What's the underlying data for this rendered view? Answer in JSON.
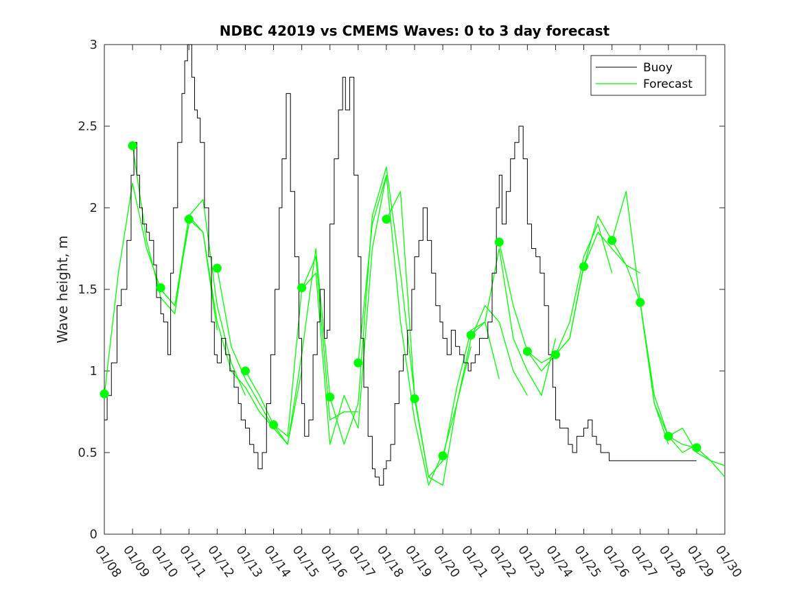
{
  "chart_data": {
    "type": "line",
    "title": "NDBC 42019 vs CMEMS Waves: 0 to 3 day forecast",
    "ylabel": "Wave height, m",
    "xlabel": "",
    "xlim": [
      0,
      22
    ],
    "ylim": [
      0,
      3
    ],
    "yticks": [
      0,
      0.5,
      1,
      1.5,
      2,
      2.5,
      3
    ],
    "ytick_labels": [
      "0",
      "0.5",
      "1",
      "1.5",
      "2",
      "2.5",
      "3"
    ],
    "xtick_labels": [
      "01/08",
      "01/09",
      "01/10",
      "01/11",
      "01/12",
      "01/13",
      "01/14",
      "01/15",
      "01/16",
      "01/17",
      "01/18",
      "01/19",
      "01/20",
      "01/21",
      "01/22",
      "01/23",
      "01/24",
      "01/25",
      "01/26",
      "01/27",
      "01/28",
      "01/29",
      "01/30"
    ],
    "legend": {
      "position": "top-right",
      "entries": [
        {
          "name": "Buoy",
          "color": "#000000"
        },
        {
          "name": "Forecast",
          "color": "#00ff00"
        }
      ]
    },
    "buoy": {
      "name": "Buoy",
      "color": "#000000",
      "x": [
        0,
        0.1,
        0.25,
        0.45,
        0.6,
        0.8,
        0.95,
        1.05,
        1.15,
        1.25,
        1.35,
        1.5,
        1.6,
        1.75,
        1.85,
        2.0,
        2.1,
        2.25,
        2.35,
        2.45,
        2.6,
        2.75,
        2.85,
        2.95,
        3.1,
        3.2,
        3.3,
        3.4,
        3.55,
        3.7,
        3.8,
        3.9,
        4.0,
        4.15,
        4.3,
        4.45,
        4.6,
        4.75,
        4.85,
        5.0,
        5.15,
        5.3,
        5.45,
        5.6,
        5.75,
        5.9,
        6.05,
        6.2,
        6.3,
        6.45,
        6.6,
        6.75,
        6.9,
        7.0,
        7.1,
        7.25,
        7.4,
        7.55,
        7.65,
        7.8,
        7.9,
        8.0,
        8.15,
        8.3,
        8.45,
        8.55,
        8.7,
        8.85,
        9.0,
        9.1,
        9.2,
        9.35,
        9.5,
        9.6,
        9.75,
        9.9,
        10.0,
        10.15,
        10.3,
        10.45,
        10.6,
        10.75,
        10.9,
        11.0,
        11.15,
        11.3,
        11.45,
        11.6,
        11.75,
        11.9,
        12.0,
        12.15,
        12.3,
        12.45,
        12.6,
        12.75,
        12.9,
        13.0,
        13.15,
        13.3,
        13.45,
        13.6,
        13.75,
        13.9,
        14.0,
        14.1,
        14.25,
        14.4,
        14.55,
        14.7,
        14.85,
        15.0,
        15.15,
        15.3,
        15.45,
        15.6,
        15.75,
        15.9,
        16.0,
        16.15,
        16.3,
        16.45,
        16.6,
        16.75,
        16.9,
        17.0,
        17.15,
        17.3,
        17.45,
        17.6,
        17.75,
        17.9,
        18.0,
        18.1,
        18.25,
        18.4,
        18.55,
        18.7,
        18.85,
        19.0,
        19.1,
        19.25,
        19.4,
        19.55,
        19.7,
        19.85,
        20.0,
        20.15,
        20.3,
        20.45,
        20.6,
        20.75,
        20.9,
        21.0
      ],
      "values": [
        0.7,
        0.85,
        1.05,
        1.4,
        1.5,
        1.8,
        2.2,
        2.4,
        2.2,
        2.0,
        1.9,
        1.85,
        1.8,
        1.65,
        1.45,
        1.35,
        1.3,
        1.1,
        1.6,
        2.0,
        2.4,
        2.7,
        2.9,
        3.0,
        2.8,
        2.6,
        2.55,
        2.4,
        2.0,
        1.7,
        1.3,
        1.1,
        1.05,
        1.2,
        1.1,
        1.0,
        0.9,
        0.8,
        0.7,
        0.65,
        0.55,
        0.5,
        0.4,
        0.5,
        0.8,
        1.1,
        1.5,
        2.0,
        2.3,
        2.7,
        2.1,
        1.7,
        1.2,
        0.8,
        0.6,
        0.7,
        1.1,
        1.3,
        1.5,
        1.2,
        1.25,
        1.9,
        2.3,
        2.6,
        2.8,
        2.6,
        2.8,
        2.2,
        1.7,
        1.2,
        0.9,
        0.6,
        0.4,
        0.35,
        0.3,
        0.4,
        0.45,
        0.55,
        0.8,
        1.0,
        1.1,
        1.25,
        1.5,
        1.7,
        1.8,
        2.0,
        1.8,
        1.6,
        1.4,
        1.3,
        1.2,
        1.1,
        1.25,
        1.15,
        1.1,
        1.05,
        1.0,
        1.05,
        1.1,
        1.2,
        1.2,
        1.3,
        1.6,
        2.0,
        2.2,
        1.9,
        2.1,
        2.3,
        2.4,
        2.5,
        2.3,
        1.9,
        1.75,
        1.7,
        1.6,
        1.4,
        1.1,
        0.9,
        0.7,
        0.65,
        0.65,
        0.55,
        0.5,
        0.6,
        0.6,
        0.65,
        0.7,
        0.6,
        0.55,
        0.5,
        0.5,
        0.45,
        0.45,
        0.45,
        0.45,
        0.45,
        0.45,
        0.45,
        0.45,
        0.45,
        0.45,
        0.45,
        0.45,
        0.45,
        0.45,
        0.45,
        0.45,
        0.45,
        0.45,
        0.45,
        0.45,
        0.45,
        0.45,
        0.45
      ]
    },
    "forecast_series": [
      {
        "name": "Forecast",
        "x": [
          0,
          0.5,
          1.0,
          1.5,
          2.0,
          2.5,
          3.0
        ],
        "values": [
          0.85,
          1.6,
          2.15,
          1.75,
          1.5,
          1.4,
          1.9
        ]
      },
      {
        "name": "Forecast",
        "x": [
          1,
          1.5,
          2.0,
          2.5,
          3.0,
          3.5,
          4.0
        ],
        "values": [
          2.38,
          1.8,
          1.45,
          1.35,
          1.95,
          1.85,
          1.25
        ]
      },
      {
        "name": "Forecast",
        "x": [
          2,
          2.5,
          3.0,
          3.5,
          4.0,
          4.5,
          5.0
        ],
        "values": [
          1.5,
          1.4,
          1.95,
          2.05,
          1.4,
          1.05,
          0.85
        ]
      },
      {
        "name": "Forecast",
        "x": [
          3,
          3.5,
          4.0,
          4.5,
          5.0,
          5.5,
          6.0
        ],
        "values": [
          1.93,
          1.85,
          1.3,
          1.0,
          0.9,
          0.75,
          0.65
        ]
      },
      {
        "name": "Forecast",
        "x": [
          4,
          4.5,
          5.0,
          5.5,
          6.0,
          6.5,
          7.0
        ],
        "values": [
          1.63,
          1.15,
          0.95,
          0.8,
          0.65,
          0.55,
          1.0
        ]
      },
      {
        "name": "Forecast",
        "x": [
          5,
          5.5,
          6.0,
          6.5,
          7.0,
          7.5,
          8.0
        ],
        "values": [
          1.0,
          0.85,
          0.67,
          0.55,
          1.1,
          1.75,
          0.85
        ]
      },
      {
        "name": "Forecast",
        "x": [
          6,
          6.5,
          7.0,
          7.5,
          8.0,
          8.5,
          9.0
        ],
        "values": [
          0.67,
          0.6,
          1.5,
          1.7,
          0.7,
          0.75,
          0.75
        ]
      },
      {
        "name": "Forecast",
        "x": [
          7,
          7.5,
          8.0,
          8.5,
          9.0,
          9.5,
          10.0
        ],
        "values": [
          1.5,
          1.6,
          0.55,
          0.85,
          0.65,
          1.75,
          2.2
        ]
      },
      {
        "name": "Forecast",
        "x": [
          8,
          8.5,
          9.0,
          9.5,
          10.0,
          10.5,
          11.0
        ],
        "values": [
          0.84,
          0.55,
          0.8,
          1.95,
          2.25,
          1.6,
          0.85
        ]
      },
      {
        "name": "Forecast",
        "x": [
          9,
          9.5,
          10.0,
          10.5,
          11.0,
          11.5,
          12.0
        ],
        "values": [
          1.05,
          1.9,
          2.2,
          1.3,
          0.7,
          0.3,
          0.5
        ]
      },
      {
        "name": "Forecast",
        "x": [
          10,
          10.5,
          11.0,
          11.5,
          12.0,
          12.5,
          13.0
        ],
        "values": [
          1.93,
          2.1,
          0.85,
          0.35,
          0.3,
          0.8,
          1.15
        ]
      },
      {
        "name": "Forecast",
        "x": [
          11,
          11.5,
          12.0,
          12.5,
          13.0,
          13.5,
          14.0
        ],
        "values": [
          0.83,
          0.35,
          0.45,
          0.9,
          1.25,
          1.3,
          0.95
        ]
      },
      {
        "name": "Forecast",
        "x": [
          12,
          12.5,
          13.0,
          13.5,
          14.0,
          14.5,
          15.0
        ],
        "values": [
          0.48,
          0.8,
          1.2,
          1.4,
          1.3,
          1.0,
          0.85
        ]
      },
      {
        "name": "Forecast",
        "x": [
          13,
          13.5,
          14.0,
          14.5,
          15.0,
          15.5,
          16.0
        ],
        "values": [
          1.22,
          1.3,
          1.75,
          1.2,
          1.0,
          0.85,
          1.2
        ]
      },
      {
        "name": "Forecast",
        "x": [
          14,
          14.5,
          15.0,
          15.5,
          16.0,
          16.5,
          17.0
        ],
        "values": [
          1.79,
          1.4,
          1.12,
          1.0,
          1.1,
          1.2,
          1.65
        ]
      },
      {
        "name": "Forecast",
        "x": [
          15,
          15.5,
          16.0,
          16.5,
          17.0,
          17.5,
          18.0
        ],
        "values": [
          1.12,
          1.05,
          1.1,
          1.3,
          1.7,
          1.9,
          1.6
        ]
      },
      {
        "name": "Forecast",
        "x": [
          16,
          16.5,
          17.0,
          17.5,
          18.0,
          18.5,
          19.0
        ],
        "values": [
          1.1,
          1.2,
          1.64,
          1.85,
          1.75,
          1.65,
          1.6
        ]
      },
      {
        "name": "Forecast",
        "x": [
          17,
          17.5,
          18.0,
          18.5,
          19.0,
          19.5,
          20.0
        ],
        "values": [
          1.64,
          1.95,
          1.8,
          2.1,
          1.42,
          0.8,
          0.55
        ]
      },
      {
        "name": "Forecast",
        "x": [
          18,
          18.5,
          19.0,
          19.5,
          20.0,
          20.5,
          21.0
        ],
        "values": [
          1.8,
          1.65,
          1.42,
          0.85,
          0.6,
          0.5,
          0.55
        ]
      },
      {
        "name": "Forecast",
        "x": [
          19,
          19.5,
          20.0,
          20.5,
          21.0,
          21.5,
          22.0
        ],
        "values": [
          1.42,
          0.8,
          0.6,
          0.55,
          0.53,
          0.45,
          0.42
        ]
      },
      {
        "name": "Forecast",
        "x": [
          20,
          20.5,
          21.0,
          21.5,
          22.0
        ],
        "values": [
          0.6,
          0.65,
          0.5,
          0.45,
          0.35
        ]
      }
    ],
    "markers": {
      "name": "Forecast",
      "color": "#00ff00",
      "x": [
        0,
        1,
        2,
        3,
        4,
        5,
        6,
        7,
        8,
        9,
        10,
        11,
        12,
        13,
        14,
        15,
        16,
        17,
        18,
        19,
        20,
        21
      ],
      "values": [
        0.86,
        2.38,
        1.51,
        1.93,
        1.63,
        1.0,
        0.67,
        1.51,
        0.84,
        1.05,
        1.93,
        0.83,
        0.48,
        1.22,
        1.79,
        1.12,
        1.1,
        1.64,
        1.8,
        1.42,
        0.6,
        0.53
      ]
    }
  }
}
